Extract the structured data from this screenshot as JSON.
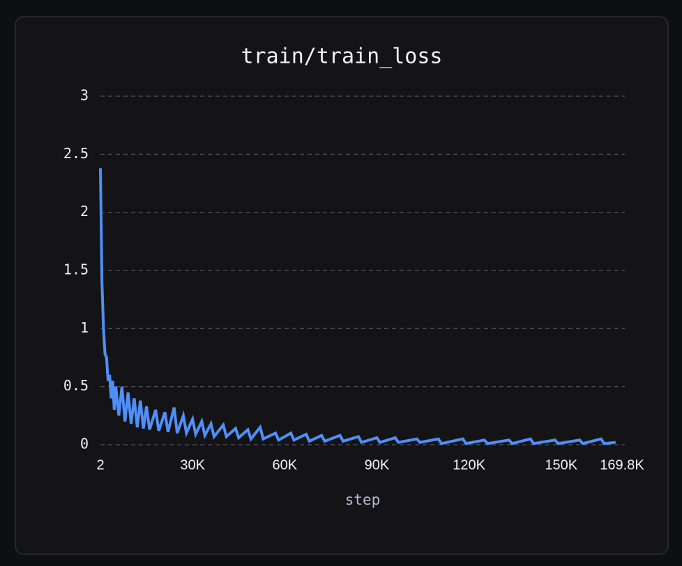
{
  "chart_data": {
    "type": "line",
    "title": "train/train_loss",
    "x_label": "step",
    "x": [
      2,
      500,
      1000,
      1500,
      2000,
      2500,
      3000,
      3500,
      4000,
      4500,
      5000,
      6000,
      7000,
      8000,
      9000,
      10000,
      11000,
      12000,
      13000,
      14000,
      15000,
      16000,
      18000,
      19000,
      21000,
      22000,
      24000,
      25000,
      27000,
      28000,
      30000,
      31000,
      33000,
      34000,
      36000,
      37000,
      40000,
      41000,
      44000,
      45000,
      48000,
      49000,
      52000,
      53000,
      57000,
      58000,
      62000,
      63000,
      67000,
      68000,
      72000,
      73000,
      78000,
      79000,
      84000,
      85000,
      90000,
      91000,
      96000,
      97000,
      103000,
      104000,
      110000,
      111000,
      118000,
      119000,
      125000,
      126000,
      133000,
      134000,
      140000,
      141000,
      148000,
      149000,
      156000,
      157000,
      163000,
      164000,
      167700
    ],
    "values": [
      2.38,
      1.4,
      1.0,
      0.78,
      0.75,
      0.55,
      0.6,
      0.4,
      0.55,
      0.3,
      0.5,
      0.25,
      0.5,
      0.2,
      0.45,
      0.18,
      0.4,
      0.15,
      0.38,
      0.14,
      0.33,
      0.13,
      0.3,
      0.12,
      0.28,
      0.11,
      0.32,
      0.1,
      0.25,
      0.1,
      0.22,
      0.09,
      0.2,
      0.08,
      0.18,
      0.07,
      0.17,
      0.07,
      0.14,
      0.06,
      0.13,
      0.05,
      0.15,
      0.05,
      0.1,
      0.04,
      0.1,
      0.04,
      0.09,
      0.03,
      0.08,
      0.03,
      0.08,
      0.03,
      0.07,
      0.02,
      0.06,
      0.02,
      0.06,
      0.02,
      0.05,
      0.02,
      0.05,
      0.01,
      0.05,
      0.01,
      0.04,
      0.01,
      0.04,
      0.01,
      0.05,
      0.01,
      0.04,
      0.01,
      0.04,
      0.01,
      0.05,
      0.01,
      0.02
    ],
    "color": "#4f8ff7",
    "xlim": [
      2,
      169800
    ],
    "xticks": [
      2,
      {
        "value": 30000,
        "label": "30K"
      },
      {
        "value": 60000,
        "label": "60K"
      },
      {
        "value": 90000,
        "label": "90K"
      },
      {
        "value": 120000,
        "label": "120K"
      },
      {
        "value": 150000,
        "label": "150K"
      },
      {
        "value": 169800,
        "label": "169.8K"
      }
    ],
    "ylim": [
      0,
      3
    ],
    "yticks": [
      0,
      0.5,
      1,
      1.5,
      2,
      2.5,
      3
    ],
    "grid": true
  }
}
